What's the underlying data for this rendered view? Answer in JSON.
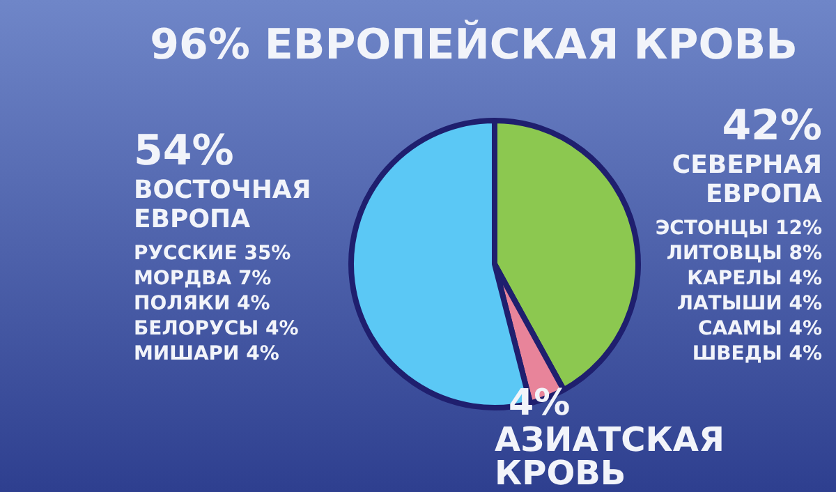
{
  "chart_data": {
    "type": "pie",
    "title": "96% ЕВРОПЕЙСКАЯ КРОВЬ",
    "categories": [
      "СЕВЕРНАЯ ЕВРОПА",
      "АЗИАТСКАЯ КРОВЬ",
      "ВОСТОЧНАЯ ЕВРОПА"
    ],
    "values": [
      42,
      4,
      54
    ],
    "value_labels": [
      "42%",
      "4%",
      "54%"
    ],
    "colors": [
      "#8cc850",
      "#e8849a",
      "#5bc8f5"
    ],
    "legend": false,
    "annotations": [
      "РУССКИЕ 35%",
      "МОРДВА 7%",
      "ПОЛЯКИ 4%",
      "БЕЛОРУСЫ 4%",
      "МИШАРИ 4%",
      "ЭСТОНЦЫ 12%",
      "ЛИТОВЦЫ 8%",
      "КАРЕЛЫ 4%",
      "ЛАТЫШИ 4%",
      "СААМЫ 4%",
      "ШВЕДЫ 4%"
    ]
  }
}
